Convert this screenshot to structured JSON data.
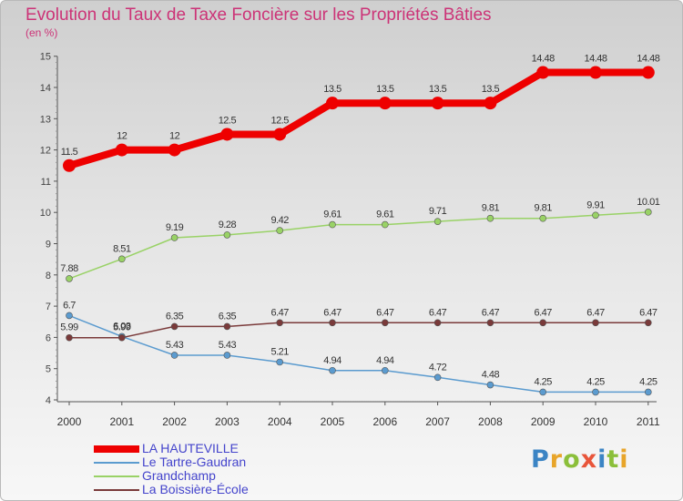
{
  "title": "Evolution du Taux de Taxe Foncière sur les Propriétés Bâties",
  "unit_label": "(en %)",
  "brand": {
    "text": "Proxiti",
    "letter_colors": [
      "#3b84c4",
      "#e8a52a",
      "#8bbf3a",
      "#e8553a",
      "#3b84c4",
      "#8bbf3a",
      "#e8a52a"
    ]
  },
  "chart_data": {
    "type": "line",
    "x": [
      "2000",
      "2001",
      "2002",
      "2003",
      "2004",
      "2005",
      "2006",
      "2007",
      "2008",
      "2009",
      "2010",
      "2011"
    ],
    "ylim": [
      4,
      15
    ],
    "yticks": [
      "4",
      "5",
      "6",
      "7",
      "8",
      "9",
      "10",
      "11",
      "12",
      "13",
      "14",
      "15"
    ],
    "grid": false,
    "legend_position": "bottom-left",
    "series": [
      {
        "name": "LA HAUTEVILLE",
        "color": "#ee0000",
        "values": [
          11.5,
          12,
          12,
          12.5,
          12.5,
          13.5,
          13.5,
          13.5,
          13.5,
          14.48,
          14.48,
          14.48
        ],
        "labels": [
          "11.5",
          "12",
          "12",
          "12.5",
          "12.5",
          "13.5",
          "13.5",
          "13.5",
          "13.5",
          "14.48",
          "14.48",
          "14.48"
        ]
      },
      {
        "name": "Le Tartre-Gaudran",
        "color": "#5b9bcf",
        "values": [
          6.7,
          6.03,
          5.43,
          5.43,
          5.21,
          4.94,
          4.94,
          4.72,
          4.48,
          4.25,
          4.25,
          4.25
        ],
        "labels": [
          "6.7",
          "6.03",
          "5.43",
          "5.43",
          "5.21",
          "4.94",
          "4.94",
          "4.72",
          "4.48",
          "4.25",
          "4.25",
          "4.25"
        ]
      },
      {
        "name": "Grandchamp",
        "color": "#99d266",
        "values": [
          7.88,
          8.51,
          9.19,
          9.28,
          9.42,
          9.61,
          9.61,
          9.71,
          9.81,
          9.81,
          9.91,
          10.01
        ],
        "labels": [
          "7.88",
          "8.51",
          "9.19",
          "9.28",
          "9.42",
          "9.61",
          "9.61",
          "9.71",
          "9.81",
          "9.81",
          "9.91",
          "10.01"
        ]
      },
      {
        "name": "La Boissière-École",
        "color": "#7a3a3a",
        "values": [
          5.99,
          5.99,
          6.35,
          6.35,
          6.47,
          6.47,
          6.47,
          6.47,
          6.47,
          6.47,
          6.47,
          6.47
        ],
        "labels": [
          "5.99",
          "5.99",
          "6.35",
          "6.35",
          "6.47",
          "6.47",
          "6.47",
          "6.47",
          "6.47",
          "6.47",
          "6.47",
          "6.47"
        ]
      }
    ]
  }
}
